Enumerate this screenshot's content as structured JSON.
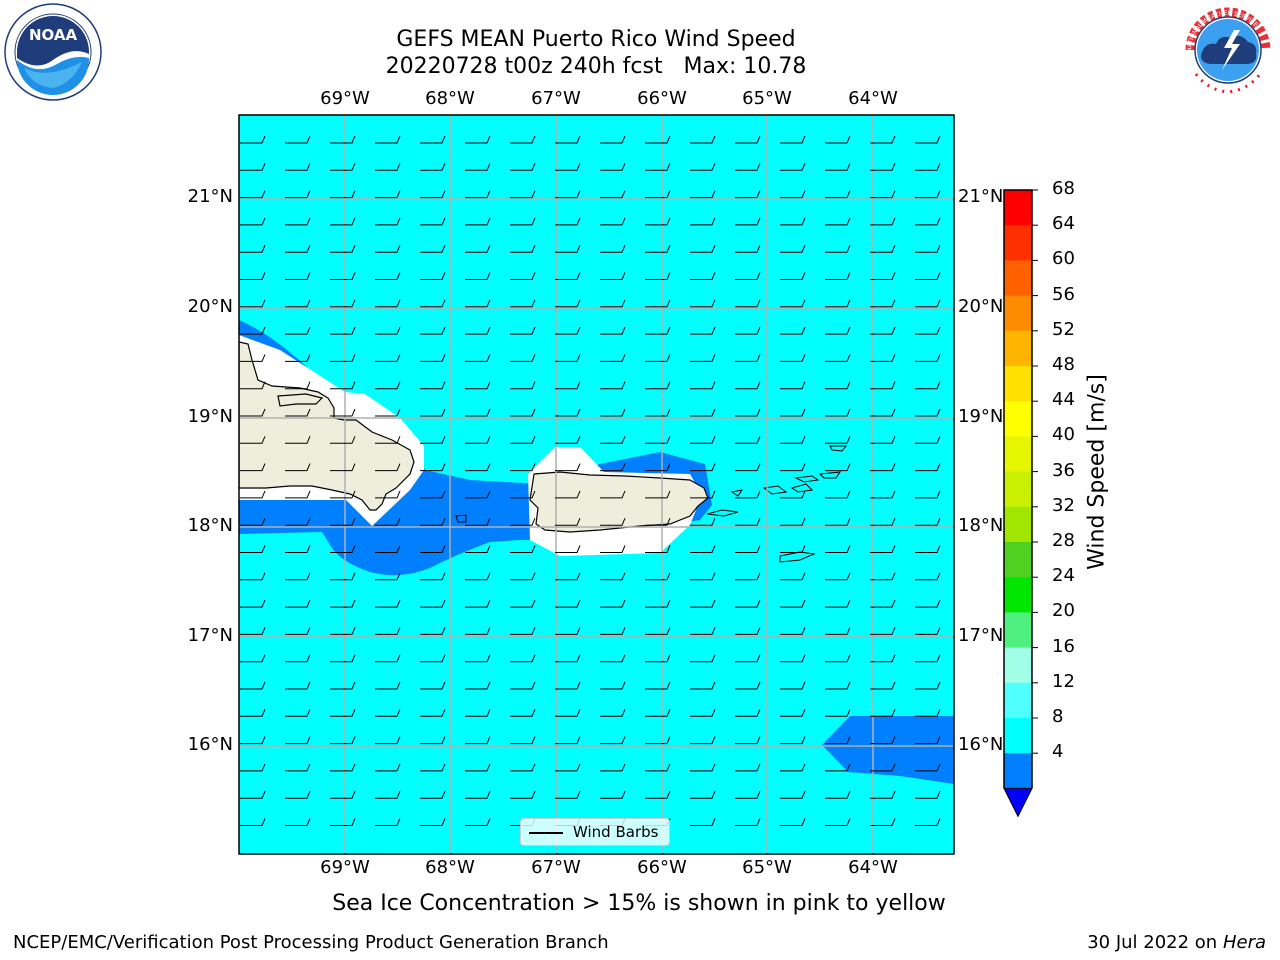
{
  "header": {
    "title_line1": "GEFS MEAN Puerto Rico Wind Speed",
    "title_line2": "20220728 t00z 240h fcst   Max: 10.78"
  },
  "logos": {
    "noaa_text": "NOAA",
    "nws_text": "NATIONAL WEATHER SERVICE"
  },
  "map": {
    "lon_labels": [
      "69°W",
      "68°W",
      "67°W",
      "66°W",
      "65°W",
      "64°W"
    ],
    "lat_labels": [
      "21°N",
      "20°N",
      "19°N",
      "18°N",
      "17°N",
      "16°N"
    ],
    "legend_label": "Wind Barbs",
    "colors": {
      "ocean": "#00ffff",
      "low_wind": "#0080ff",
      "land": "#efeedc",
      "grid": "#b0b0b0"
    }
  },
  "colorbar": {
    "label": "Wind Speed [m/s]",
    "ticks": [
      "68",
      "64",
      "60",
      "56",
      "52",
      "48",
      "44",
      "40",
      "36",
      "32",
      "28",
      "24",
      "20",
      "16",
      "12",
      "8",
      "4"
    ],
    "colors": [
      "#ff0000",
      "#ff3000",
      "#ff6000",
      "#ff8c00",
      "#ffb400",
      "#ffe000",
      "#ffff00",
      "#e6f500",
      "#c8f000",
      "#a0e600",
      "#50d020",
      "#00e600",
      "#50f080",
      "#a0ffe6",
      "#50ffff",
      "#00ffff",
      "#0080ff"
    ],
    "under_color": "#0000ff"
  },
  "footer": {
    "note": "Sea Ice Concentration > 15% is shown in pink to yellow",
    "left": "NCEP/EMC/Verification Post Processing Product Generation Branch",
    "date": "30 Jul 2022 on ",
    "machine": "Hera"
  }
}
